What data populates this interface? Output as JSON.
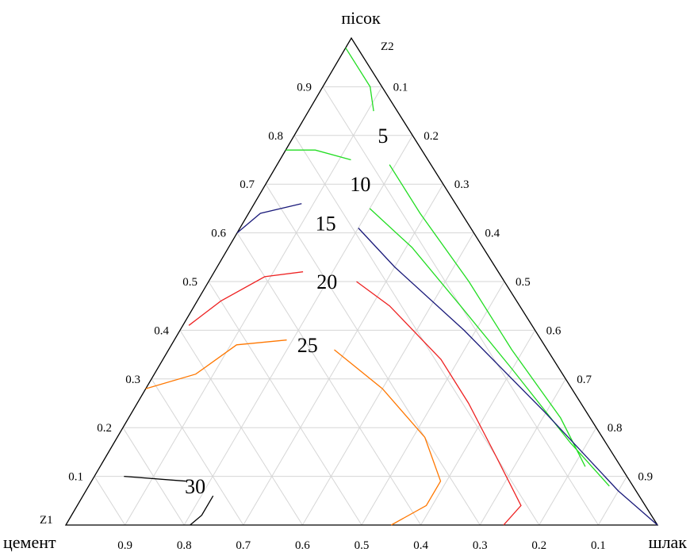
{
  "chart_data": {
    "type": "ternary-contour",
    "vertices": {
      "top": "пісок",
      "left": "цемент",
      "right": "шлак"
    },
    "axes": {
      "z1": {
        "name": "Z1",
        "ticks": [
          "0.1",
          "0.2",
          "0.3",
          "0.4",
          "0.5",
          "0.6",
          "0.7",
          "0.8",
          "0.9"
        ]
      },
      "z2": {
        "name": "Z2",
        "ticks": [
          "0.1",
          "0.2",
          "0.3",
          "0.4",
          "0.5",
          "0.6",
          "0.7",
          "0.8",
          "0.9"
        ]
      },
      "z3": {
        "ticks": [
          "0.9",
          "0.8",
          "0.7",
          "0.6",
          "0.5",
          "0.4",
          "0.3",
          "0.2",
          "0.1"
        ]
      }
    },
    "grid": true,
    "contours": [
      {
        "level": "5",
        "color": "#22dd22",
        "segments": [
          [
            [
              0.02,
              0.98
            ],
            [
              0.02,
              0.9
            ],
            [
              0.04,
              0.85
            ]
          ],
          [
            [
              0.07,
              0.74
            ],
            [
              0.07,
              0.64
            ],
            [
              0.06,
              0.5
            ],
            [
              0.06,
              0.36
            ],
            [
              0.05,
              0.22
            ],
            [
              0.06,
              0.12
            ]
          ]
        ]
      },
      {
        "level": "10",
        "color": "#22dd22",
        "segments": [
          [
            [
              0.23,
              0.77
            ],
            [
              0.18,
              0.77
            ],
            [
              0.13,
              0.75
            ]
          ],
          [
            [
              0.15,
              0.65
            ],
            [
              0.12,
              0.57
            ],
            [
              0.1,
              0.45
            ],
            [
              0.08,
              0.32
            ],
            [
              0.06,
              0.17
            ],
            [
              0.04,
              0.08
            ]
          ]
        ]
      },
      {
        "level": "15",
        "color": "#1a1a7a",
        "segments": [
          [
            [
              0.4,
              0.6
            ],
            [
              0.34,
              0.64
            ],
            [
              0.26,
              0.66
            ]
          ],
          [
            [
              0.19,
              0.61
            ],
            [
              0.17,
              0.53
            ],
            [
              0.12,
              0.4
            ],
            [
              0.07,
              0.23
            ],
            [
              0.03,
              0.07
            ],
            [
              0.0,
              0.0
            ]
          ]
        ]
      },
      {
        "level": "20",
        "color": "#ee2222",
        "segments": [
          [
            [
              0.58,
              0.41
            ],
            [
              0.5,
              0.46
            ],
            [
              0.4,
              0.51
            ],
            [
              0.33,
              0.52
            ]
          ],
          [
            [
              0.25,
              0.5
            ],
            [
              0.22,
              0.45
            ],
            [
              0.19,
              0.34
            ],
            [
              0.19,
              0.25
            ],
            [
              0.2,
              0.14
            ],
            [
              0.21,
              0.04
            ],
            [
              0.26,
              0.0
            ]
          ]
        ]
      },
      {
        "level": "25",
        "color": "#ff7700",
        "segments": [
          [
            [
              0.72,
              0.28
            ],
            [
              0.62,
              0.31
            ],
            [
              0.52,
              0.37
            ],
            [
              0.43,
              0.38
            ]
          ],
          [
            [
              0.36,
              0.36
            ],
            [
              0.32,
              0.28
            ],
            [
              0.3,
              0.18
            ],
            [
              0.32,
              0.09
            ],
            [
              0.37,
              0.04
            ],
            [
              0.45,
              0.0
            ]
          ]
        ]
      },
      {
        "level": "30",
        "color": "#000000",
        "segments": [
          [
            [
              0.85,
              0.1
            ],
            [
              0.75,
              0.09
            ]
          ],
          [
            [
              0.72,
              0.06
            ],
            [
              0.76,
              0.02
            ],
            [
              0.79,
              0.0
            ]
          ]
        ]
      }
    ],
    "label_positions": [
      {
        "level": "5",
        "cement": 0.05,
        "sand": 0.8
      },
      {
        "level": "10",
        "cement": 0.14,
        "sand": 0.7
      },
      {
        "level": "15",
        "cement": 0.24,
        "sand": 0.62
      },
      {
        "level": "20",
        "cement": 0.3,
        "sand": 0.5
      },
      {
        "level": "25",
        "cement": 0.4,
        "sand": 0.37
      },
      {
        "level": "30",
        "cement": 0.74,
        "sand": 0.08
      }
    ]
  }
}
